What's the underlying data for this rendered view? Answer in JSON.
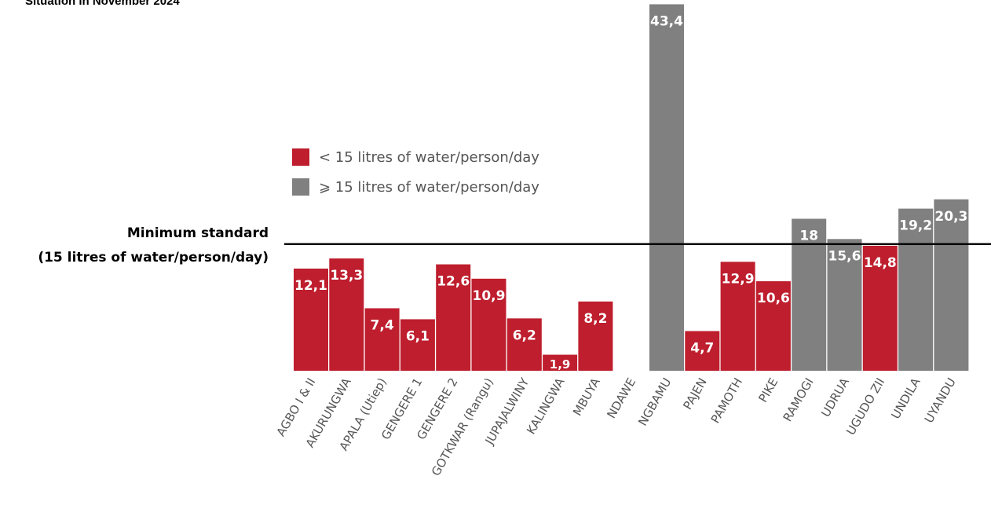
{
  "subtitle": "Situation in November 2024",
  "legend": {
    "below": {
      "label": "< 15 litres of water/person/day",
      "color": "#BE1E2D"
    },
    "above": {
      "label": "⩾ 15 litres of water/person/day",
      "color": "#808080"
    }
  },
  "reference": {
    "title": "Minimum standard",
    "subtitle": "(15 litres of water/person/day)"
  },
  "chart_data": {
    "type": "bar",
    "title": "",
    "xlabel": "",
    "ylabel": "",
    "threshold": 15,
    "categories": [
      "AGBO I & II",
      "AKURUNGWA",
      "APALA (Utiep)",
      "GENGERE 1",
      "GENGERE 2",
      "GOTKWAR (Rangu)",
      "JUPAJALWINY",
      "KALINGWA",
      "MBUYA",
      "NDAWE",
      "NGBAMU",
      "PAJEN",
      "PAMOTH",
      "PIKE",
      "RAMOGI",
      "UDRUA",
      "UGUDO ZII",
      "UNDILA",
      "UYANDU"
    ],
    "values": [
      12.1,
      13.3,
      7.4,
      6.1,
      12.6,
      10.9,
      6.2,
      1.9,
      8.2,
      null,
      43.4,
      4.7,
      12.9,
      10.6,
      18,
      15.6,
      14.8,
      19.2,
      20.3
    ],
    "labels": [
      "12,1",
      "13,3",
      "7,4",
      "6,1",
      "12,6",
      "10,9",
      "6,2",
      "1,9",
      "8,2",
      "",
      "43,4",
      "4,7",
      "12,9",
      "10,6",
      "18",
      "15,6",
      "14,8",
      "19,2",
      "20,3"
    ]
  }
}
